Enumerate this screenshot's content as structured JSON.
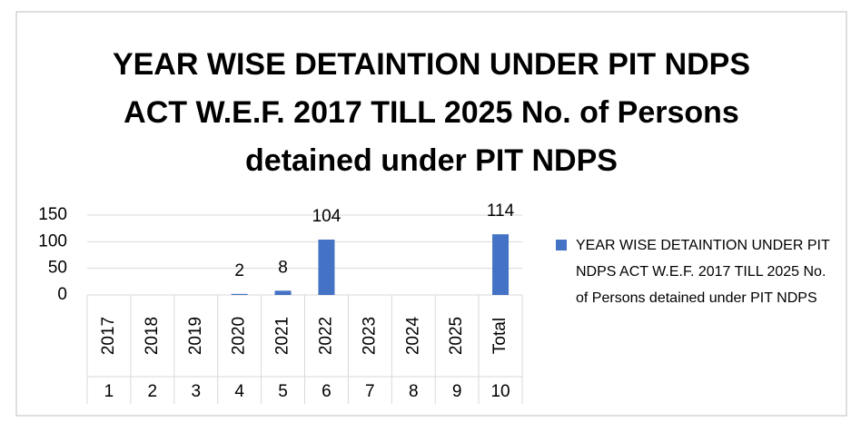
{
  "chart_data": {
    "type": "bar",
    "title": "YEAR WISE DETAINTION UNDER PIT NDPS ACT W.E.F. 2017 TILL 2025 No. of Persons detained under PIT NDPS",
    "categories": [
      "2017",
      "2018",
      "2019",
      "2020",
      "2021",
      "2022",
      "2023",
      "2024",
      "2025",
      "Total"
    ],
    "category_groups": [
      "1",
      "2",
      "3",
      "4",
      "5",
      "6",
      "7",
      "8",
      "9",
      "10"
    ],
    "series": [
      {
        "name": "YEAR WISE DETAINTION UNDER PIT NDPS ACT W.E.F. 2017 TILL 2025 No. of Persons detained under PIT NDPS",
        "color": "#4472c4",
        "values": [
          null,
          null,
          null,
          2,
          8,
          104,
          null,
          null,
          null,
          114
        ]
      }
    ],
    "ylim": [
      0,
      150
    ],
    "yticks": [
      0,
      50,
      100,
      150
    ],
    "grid": true,
    "legend": "right"
  }
}
